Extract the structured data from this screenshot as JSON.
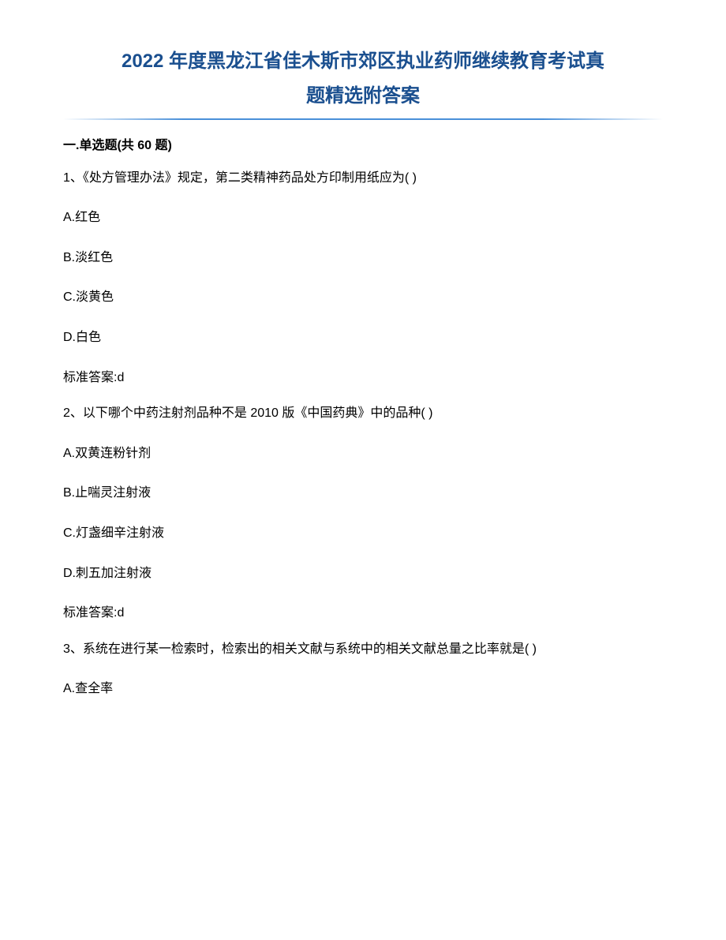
{
  "document": {
    "title_line1": "2022 年度黑龙江省佳木斯市郊区执业药师继续教育考试真",
    "title_line2": "题精选附答案",
    "title_color": "#1a4f8f",
    "title_fontsize": 24,
    "body_fontsize": 16,
    "divider_color": "#4a90d9",
    "background_color": "#ffffff",
    "text_color": "#000000"
  },
  "section": {
    "heading": "一.单选题(共 60 题)"
  },
  "questions": [
    {
      "number": "1、",
      "text": "《处方管理办法》规定，第二类精神药品处方印制用纸应为( )",
      "options": [
        {
          "label": "A.红色"
        },
        {
          "label": "B.淡红色"
        },
        {
          "label": "C.淡黄色"
        },
        {
          "label": "D.白色"
        }
      ],
      "answer": "标准答案:d"
    },
    {
      "number": "2、",
      "text": "以下哪个中药注射剂品种不是 2010 版《中国药典》中的品种( )",
      "options": [
        {
          "label": "A.双黄连粉针剂"
        },
        {
          "label": "B.止喘灵注射液"
        },
        {
          "label": "C.灯盏细辛注射液"
        },
        {
          "label": "D.刺五加注射液"
        }
      ],
      "answer": "标准答案:d"
    },
    {
      "number": "3、",
      "text": "系统在进行某一检索时，检索出的相关文献与系统中的相关文献总量之比率就是( )",
      "options": [
        {
          "label": "A.查全率"
        }
      ],
      "answer": ""
    }
  ]
}
